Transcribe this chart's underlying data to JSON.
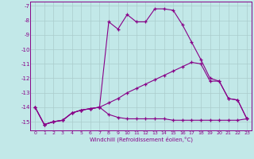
{
  "xlabel": "Windchill (Refroidissement éolien,°C)",
  "background_color": "#c2e8e8",
  "line_color": "#880088",
  "grid_color": "#aacccc",
  "x_values": [
    0,
    1,
    2,
    3,
    4,
    5,
    6,
    7,
    8,
    9,
    10,
    11,
    12,
    13,
    14,
    15,
    16,
    17,
    18,
    19,
    20,
    21,
    22,
    23
  ],
  "curve1_y": [
    -14.0,
    -15.2,
    -15.0,
    -14.9,
    -14.4,
    -14.2,
    -14.1,
    -14.0,
    -8.1,
    -8.6,
    -7.6,
    -8.1,
    -8.1,
    -7.2,
    -7.2,
    -7.3,
    -8.3,
    -9.5,
    -10.7,
    -12.0,
    -12.2,
    -13.4,
    -13.5,
    -14.8
  ],
  "curve2_y": [
    -14.0,
    -15.2,
    -15.0,
    -14.9,
    -14.4,
    -14.2,
    -14.1,
    -14.0,
    -14.5,
    -14.7,
    -14.8,
    -14.8,
    -14.8,
    -14.8,
    -14.8,
    -14.9,
    -14.9,
    -14.9,
    -14.9,
    -14.9,
    -14.9,
    -14.9,
    -14.9,
    -14.8
  ],
  "curve3_y": [
    -14.0,
    -15.2,
    -15.0,
    -14.9,
    -14.4,
    -14.2,
    -14.1,
    -14.0,
    -13.7,
    -13.4,
    -13.0,
    -12.7,
    -12.4,
    -12.1,
    -11.8,
    -11.5,
    -11.2,
    -10.9,
    -11.0,
    -12.2,
    -12.2,
    -13.4,
    -13.5,
    -14.8
  ],
  "ylim": [
    -15.6,
    -6.7
  ],
  "xlim": [
    -0.5,
    23.5
  ],
  "yticks": [
    -7,
    -8,
    -9,
    -10,
    -11,
    -12,
    -13,
    -14,
    -15
  ],
  "xticks": [
    0,
    1,
    2,
    3,
    4,
    5,
    6,
    7,
    8,
    9,
    10,
    11,
    12,
    13,
    14,
    15,
    16,
    17,
    18,
    19,
    20,
    21,
    22,
    23
  ]
}
